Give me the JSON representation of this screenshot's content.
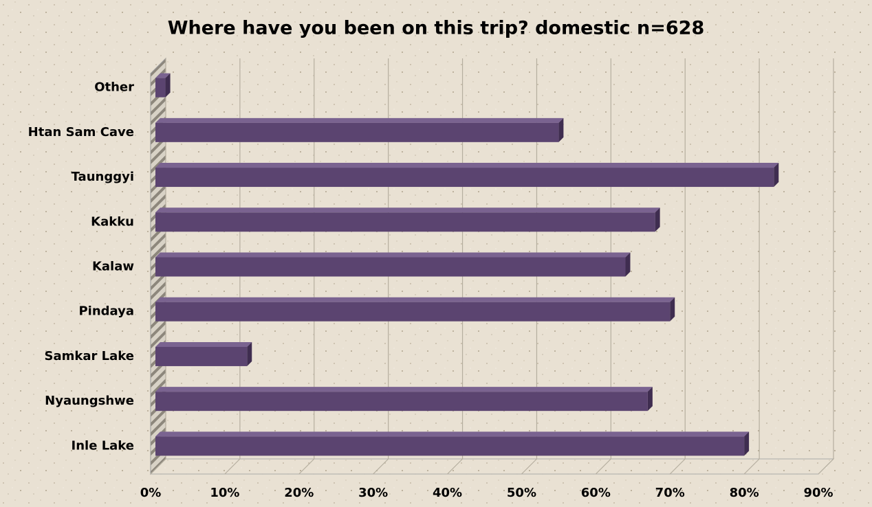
{
  "chart_data": {
    "type": "bar",
    "orientation": "horizontal",
    "title": "Where have you been on this trip? domestic n=628",
    "categories": [
      "Inle Lake",
      "Nyaungshwe",
      "Samkar Lake",
      "Pindaya",
      "Kalaw",
      "Kakku",
      "Taunggyi",
      "Htan Sam Cave",
      "Other"
    ],
    "values": [
      80,
      67,
      13,
      70,
      64,
      68,
      84,
      55,
      2
    ],
    "color": "#5b4470",
    "xlim": [
      0,
      90
    ],
    "xticks": [
      {
        "value": 0,
        "label": "0%"
      },
      {
        "value": 10,
        "label": "10%"
      },
      {
        "value": 20,
        "label": "20%"
      },
      {
        "value": 30,
        "label": "30%"
      },
      {
        "value": 40,
        "label": "40%"
      },
      {
        "value": 50,
        "label": "50%"
      },
      {
        "value": 60,
        "label": "60%"
      },
      {
        "value": 70,
        "label": "70%"
      },
      {
        "value": 80,
        "label": "80%"
      },
      {
        "value": 90,
        "label": "90%"
      }
    ],
    "grid": true
  }
}
